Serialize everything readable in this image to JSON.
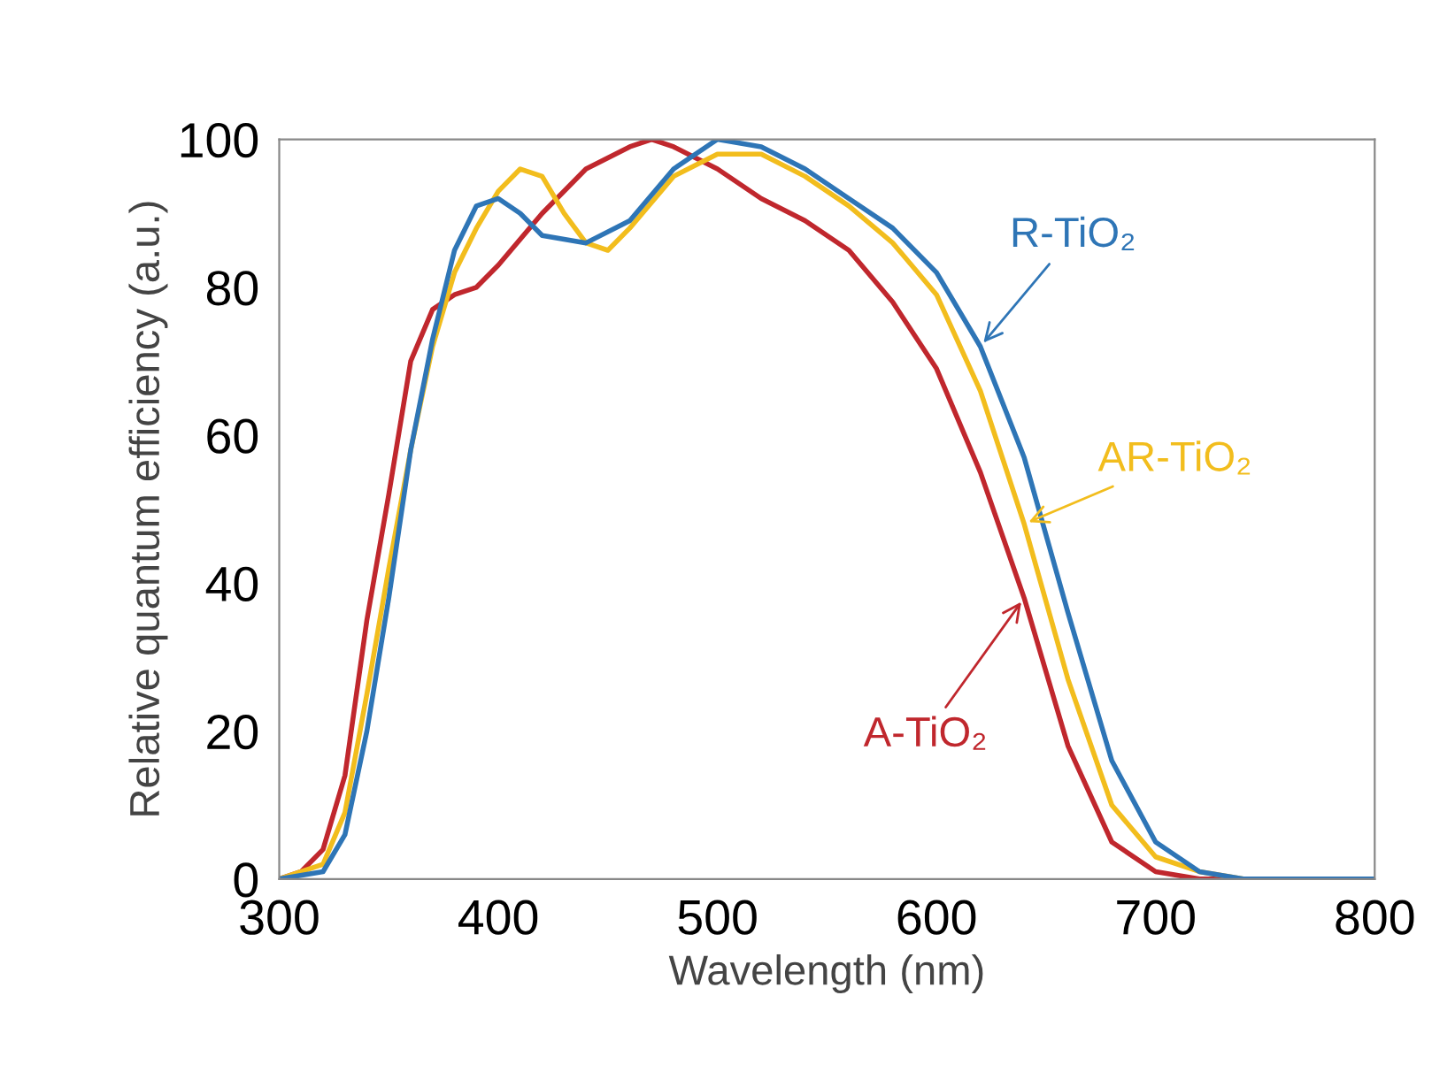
{
  "chart_data": {
    "type": "line",
    "xlabel": "Wavelength (nm)",
    "ylabel": "Relative quantum efficiency (a.u.)",
    "xlim": [
      300,
      800
    ],
    "xticks": [
      300,
      400,
      500,
      600,
      700,
      800
    ],
    "ylim": [
      0,
      100
    ],
    "yticks": [
      0,
      20,
      40,
      60,
      80,
      100
    ],
    "grid": false,
    "legend": false,
    "marker": "none",
    "line_style": "solid",
    "series": [
      {
        "name": "A-TiO₂",
        "color": "#c0272d",
        "x": [
          300,
          310,
          320,
          330,
          340,
          350,
          360,
          370,
          380,
          390,
          400,
          420,
          440,
          460,
          470,
          480,
          500,
          520,
          540,
          560,
          580,
          600,
          620,
          640,
          660,
          680,
          700,
          720,
          800
        ],
        "values": [
          0,
          1,
          4,
          14,
          35,
          52,
          70,
          77,
          79,
          80,
          83,
          90,
          96,
          99,
          100,
          99,
          96,
          92,
          89,
          85,
          78,
          69,
          55,
          38,
          18,
          5,
          1,
          0,
          0
        ]
      },
      {
        "name": "AR-TiO₂",
        "color": "#f2bd1d",
        "x": [
          300,
          320,
          330,
          340,
          350,
          360,
          370,
          380,
          390,
          400,
          410,
          420,
          430,
          440,
          450,
          460,
          480,
          500,
          520,
          540,
          560,
          580,
          600,
          620,
          640,
          660,
          680,
          700,
          720,
          740,
          800
        ],
        "values": [
          0,
          2,
          9,
          25,
          42,
          58,
          72,
          82,
          88,
          93,
          96,
          95,
          90,
          86,
          85,
          88,
          95,
          98,
          98,
          95,
          91,
          86,
          79,
          66,
          48,
          27,
          10,
          3,
          1,
          0,
          0
        ]
      },
      {
        "name": "R-TiO₂",
        "color": "#2e75b6",
        "x": [
          300,
          320,
          330,
          340,
          350,
          360,
          370,
          380,
          390,
          400,
          410,
          420,
          440,
          460,
          480,
          500,
          520,
          540,
          560,
          580,
          600,
          620,
          640,
          660,
          680,
          700,
          720,
          740,
          800
        ],
        "values": [
          0,
          1,
          6,
          20,
          38,
          58,
          73,
          85,
          91,
          92,
          90,
          87,
          86,
          89,
          96,
          100,
          99,
          96,
          92,
          88,
          82,
          72,
          57,
          36,
          16,
          5,
          1,
          0,
          0
        ]
      }
    ]
  }
}
